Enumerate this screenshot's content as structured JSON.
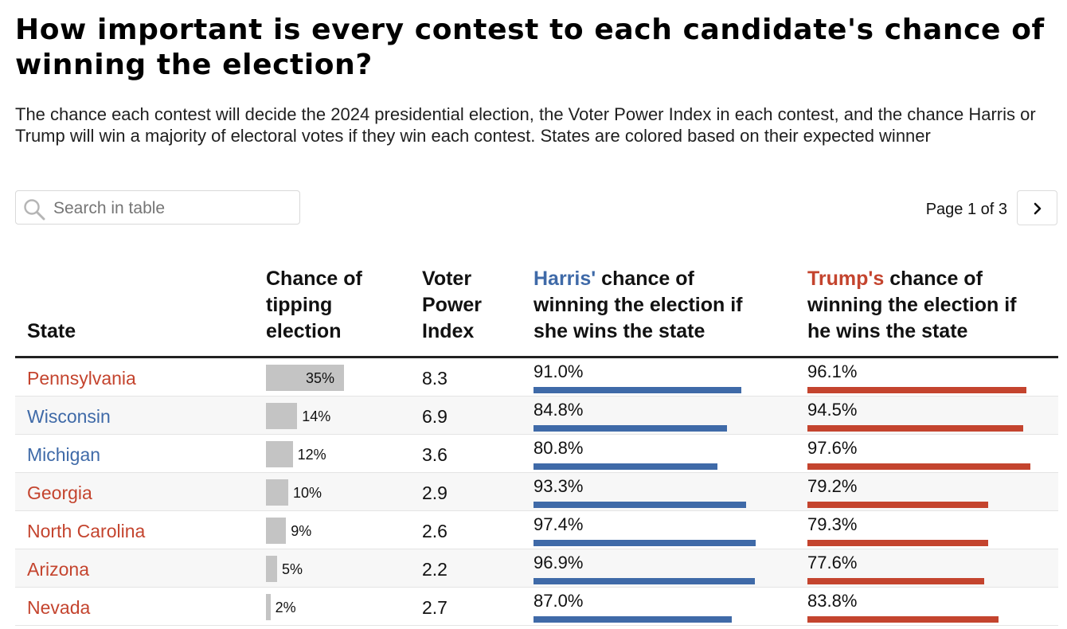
{
  "title": "How important is every contest to each candidate's chance of winning the election?",
  "subtitle": "The chance each contest will decide the 2024 presidential election, the Voter Power Index in each contest, and the chance Harris or Trump will win a majority of electoral votes if they win each contest. States are colored based on their expected winner",
  "search": {
    "placeholder": "Search in table"
  },
  "pagination": {
    "label": "Page 1 of 3"
  },
  "columns": {
    "state": "State",
    "tipping": [
      "Chance of",
      "tipping",
      "election"
    ],
    "vpi": [
      "Voter",
      "Power",
      "Index"
    ],
    "harris": {
      "name": "Harris'",
      "rest1": " chance of",
      "line2": "winning the election if",
      "line3": "she wins the state"
    },
    "trump": {
      "name": "Trump's",
      "rest1": " chance of",
      "line2": "winning the election if",
      "line3": "he wins the state"
    }
  },
  "colors": {
    "harris": "#3f6aa8",
    "trump": "#c4442e",
    "tipping_bar": "#c4c4c4"
  },
  "chart_data": {
    "type": "table",
    "rows": [
      {
        "state": "Pennsylvania",
        "expected_winner": "Trump",
        "tipping": 35,
        "tipping_label": "35%",
        "vpi": "8.3",
        "harris": 91.0,
        "harris_label": "91.0%",
        "trump": 96.1,
        "trump_label": "96.1%"
      },
      {
        "state": "Wisconsin",
        "expected_winner": "Harris",
        "tipping": 14,
        "tipping_label": "14%",
        "vpi": "6.9",
        "harris": 84.8,
        "harris_label": "84.8%",
        "trump": 94.5,
        "trump_label": "94.5%"
      },
      {
        "state": "Michigan",
        "expected_winner": "Harris",
        "tipping": 12,
        "tipping_label": "12%",
        "vpi": "3.6",
        "harris": 80.8,
        "harris_label": "80.8%",
        "trump": 97.6,
        "trump_label": "97.6%"
      },
      {
        "state": "Georgia",
        "expected_winner": "Trump",
        "tipping": 10,
        "tipping_label": "10%",
        "vpi": "2.9",
        "harris": 93.3,
        "harris_label": "93.3%",
        "trump": 79.2,
        "trump_label": "79.2%"
      },
      {
        "state": "North Carolina",
        "expected_winner": "Trump",
        "tipping": 9,
        "tipping_label": "9%",
        "vpi": "2.6",
        "harris": 97.4,
        "harris_label": "97.4%",
        "trump": 79.3,
        "trump_label": "79.3%"
      },
      {
        "state": "Arizona",
        "expected_winner": "Trump",
        "tipping": 5,
        "tipping_label": "5%",
        "vpi": "2.2",
        "harris": 96.9,
        "harris_label": "96.9%",
        "trump": 77.6,
        "trump_label": "77.6%"
      },
      {
        "state": "Nevada",
        "expected_winner": "Trump",
        "tipping": 2,
        "tipping_label": "2%",
        "vpi": "2.7",
        "harris": 87.0,
        "harris_label": "87.0%",
        "trump": 83.8,
        "trump_label": "83.8%"
      }
    ]
  }
}
